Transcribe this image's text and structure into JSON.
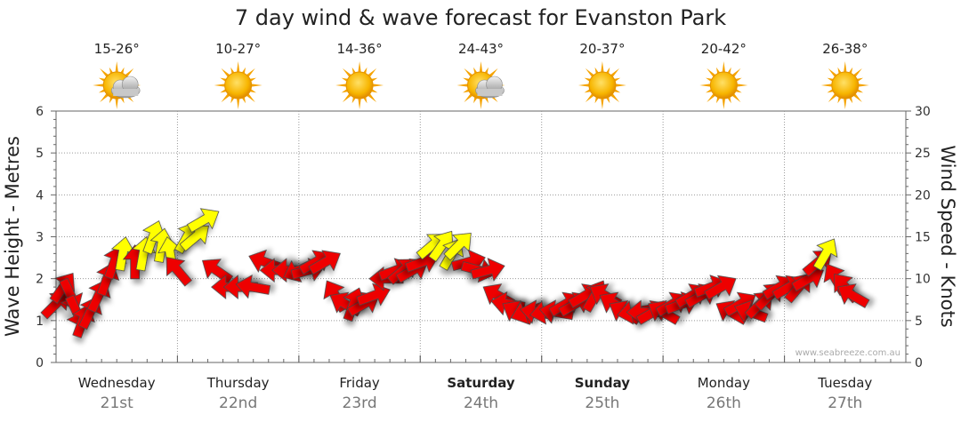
{
  "chart_data": {
    "type": "wind-wave-forecast",
    "title": "7 day wind & wave forecast for Evanston Park",
    "ylabel_left": "Wave Height - Metres",
    "ylabel_right": "Wind Speed - Knots",
    "left_ylim": [
      0,
      6
    ],
    "left_ticks": [
      "0",
      "1",
      "2",
      "3",
      "4",
      "5",
      "6"
    ],
    "right_ylim": [
      0,
      30
    ],
    "right_ticks": [
      "0",
      "5",
      "10",
      "15",
      "20",
      "25",
      "30"
    ],
    "credit": "www.seabreeze.com.au",
    "colors": {
      "low_wind": "#ee0000",
      "high_wind": "#ffff00",
      "outline": "#444444",
      "grid": "#999999"
    },
    "days": [
      {
        "day": "Wednesday",
        "date": "21st",
        "temp": "15-26°",
        "weather": "partly-cloudy",
        "bold": false
      },
      {
        "day": "Thursday",
        "date": "22nd",
        "temp": "10-27°",
        "weather": "sunny",
        "bold": false
      },
      {
        "day": "Friday",
        "date": "23rd",
        "temp": "14-36°",
        "weather": "sunny",
        "bold": false
      },
      {
        "day": "Saturday",
        "date": "24th",
        "temp": "24-43°",
        "weather": "partly-cloudy",
        "bold": true
      },
      {
        "day": "Sunday",
        "date": "25th",
        "temp": "20-37°",
        "weather": "sunny",
        "bold": true
      },
      {
        "day": "Monday",
        "date": "26th",
        "temp": "20-42°",
        "weather": "sunny",
        "bold": false
      },
      {
        "day": "Tuesday",
        "date": "27th",
        "temp": "26-38°",
        "weather": "sunny",
        "bold": false
      }
    ],
    "wind_points": [
      {
        "t": 0.0,
        "speed": 7,
        "dir": 45
      },
      {
        "t": 0.06,
        "speed": 9,
        "dir": 35
      },
      {
        "t": 0.12,
        "speed": 8,
        "dir": 155
      },
      {
        "t": 0.17,
        "speed": 6,
        "dir": 155
      },
      {
        "t": 0.22,
        "speed": 5,
        "dir": 20
      },
      {
        "t": 0.28,
        "speed": 6,
        "dir": 25
      },
      {
        "t": 0.35,
        "speed": 8,
        "dir": 25
      },
      {
        "t": 0.42,
        "speed": 10,
        "dir": 20
      },
      {
        "t": 0.48,
        "speed": 12,
        "dir": 20
      },
      {
        "t": 0.55,
        "speed": 13,
        "dir": 10
      },
      {
        "t": 0.65,
        "speed": 12,
        "dir": 0
      },
      {
        "t": 0.72,
        "speed": 13,
        "dir": 10
      },
      {
        "t": 0.8,
        "speed": 15,
        "dir": 20
      },
      {
        "t": 0.87,
        "speed": 14,
        "dir": 10
      },
      {
        "t": 0.94,
        "speed": 13,
        "dir": 350
      },
      {
        "t": 1.0,
        "speed": 11,
        "dir": 320
      },
      {
        "t": 1.08,
        "speed": 15,
        "dir": 30
      },
      {
        "t": 1.15,
        "speed": 15,
        "dir": 50
      },
      {
        "t": 1.22,
        "speed": 17,
        "dir": 60
      },
      {
        "t": 1.32,
        "speed": 11,
        "dir": 305
      },
      {
        "t": 1.42,
        "speed": 9,
        "dir": 270
      },
      {
        "t": 1.52,
        "speed": 9,
        "dir": 270
      },
      {
        "t": 1.62,
        "speed": 9,
        "dir": 280
      },
      {
        "t": 1.72,
        "speed": 12,
        "dir": 290
      },
      {
        "t": 1.82,
        "speed": 11,
        "dir": 270
      },
      {
        "t": 1.92,
        "speed": 11,
        "dir": 270
      },
      {
        "t": 2.0,
        "speed": 11,
        "dir": 245
      },
      {
        "t": 2.08,
        "speed": 11,
        "dir": 75
      },
      {
        "t": 2.14,
        "speed": 12,
        "dir": 60
      },
      {
        "t": 2.22,
        "speed": 12,
        "dir": 60
      },
      {
        "t": 2.3,
        "speed": 8,
        "dir": 330
      },
      {
        "t": 2.38,
        "speed": 7,
        "dir": 300
      },
      {
        "t": 2.45,
        "speed": 7,
        "dir": 20
      },
      {
        "t": 2.54,
        "speed": 7,
        "dir": 60
      },
      {
        "t": 2.62,
        "speed": 8,
        "dir": 70
      },
      {
        "t": 2.72,
        "speed": 10,
        "dir": 270
      },
      {
        "t": 2.8,
        "speed": 11,
        "dir": 70
      },
      {
        "t": 2.86,
        "speed": 11,
        "dir": 50
      },
      {
        "t": 2.94,
        "speed": 11,
        "dir": 60
      },
      {
        "t": 3.02,
        "speed": 12,
        "dir": 70
      },
      {
        "t": 3.1,
        "speed": 14,
        "dir": 50
      },
      {
        "t": 3.18,
        "speed": 14,
        "dir": 35
      },
      {
        "t": 3.26,
        "speed": 13,
        "dir": 30
      },
      {
        "t": 3.32,
        "speed": 14,
        "dir": 45
      },
      {
        "t": 3.4,
        "speed": 12,
        "dir": 75
      },
      {
        "t": 3.48,
        "speed": 11,
        "dir": 105
      },
      {
        "t": 3.56,
        "speed": 11,
        "dir": 75
      },
      {
        "t": 3.64,
        "speed": 8,
        "dir": 300
      },
      {
        "t": 3.72,
        "speed": 7,
        "dir": 280
      },
      {
        "t": 3.8,
        "speed": 6,
        "dir": 300
      },
      {
        "t": 3.88,
        "speed": 6,
        "dir": 250
      },
      {
        "t": 3.96,
        "speed": 6,
        "dir": 280
      },
      {
        "t": 4.04,
        "speed": 6,
        "dir": 260
      },
      {
        "t": 4.12,
        "speed": 6,
        "dir": 280
      },
      {
        "t": 4.2,
        "speed": 7,
        "dir": 60
      },
      {
        "t": 4.28,
        "speed": 7,
        "dir": 60
      },
      {
        "t": 4.36,
        "speed": 8,
        "dir": 60
      },
      {
        "t": 4.44,
        "speed": 8,
        "dir": 30
      },
      {
        "t": 4.52,
        "speed": 8,
        "dir": 300
      },
      {
        "t": 4.6,
        "speed": 7,
        "dir": 300
      },
      {
        "t": 4.68,
        "speed": 6,
        "dir": 300
      },
      {
        "t": 4.76,
        "speed": 6,
        "dir": 260
      },
      {
        "t": 4.84,
        "speed": 6,
        "dir": 270
      },
      {
        "t": 4.92,
        "speed": 6,
        "dir": 60
      },
      {
        "t": 5.0,
        "speed": 6,
        "dir": 300
      },
      {
        "t": 5.08,
        "speed": 7,
        "dir": 60
      },
      {
        "t": 5.16,
        "speed": 7,
        "dir": 70
      },
      {
        "t": 5.24,
        "speed": 8,
        "dir": 60
      },
      {
        "t": 5.32,
        "speed": 8,
        "dir": 60
      },
      {
        "t": 5.4,
        "speed": 9,
        "dir": 70
      },
      {
        "t": 5.48,
        "speed": 9,
        "dir": 60
      },
      {
        "t": 5.56,
        "speed": 6,
        "dir": 300
      },
      {
        "t": 5.64,
        "speed": 7,
        "dir": 60
      },
      {
        "t": 5.72,
        "speed": 6,
        "dir": 290
      },
      {
        "t": 5.8,
        "speed": 7,
        "dir": 45
      },
      {
        "t": 5.88,
        "speed": 8,
        "dir": 45
      },
      {
        "t": 5.96,
        "speed": 9,
        "dir": 60
      },
      {
        "t": 6.04,
        "speed": 9,
        "dir": 60
      },
      {
        "t": 6.12,
        "speed": 9,
        "dir": 40
      },
      {
        "t": 6.2,
        "speed": 10,
        "dir": 60
      },
      {
        "t": 6.28,
        "speed": 12,
        "dir": 50
      },
      {
        "t": 6.34,
        "speed": 13,
        "dir": 30
      },
      {
        "t": 6.42,
        "speed": 10,
        "dir": 330
      },
      {
        "t": 6.5,
        "speed": 9,
        "dir": 320
      },
      {
        "t": 6.56,
        "speed": 8,
        "dir": 300
      }
    ]
  }
}
